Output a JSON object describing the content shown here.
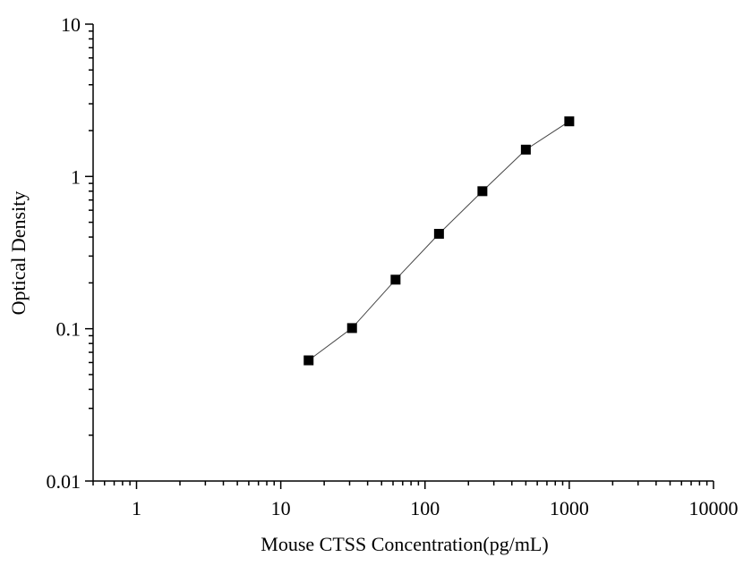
{
  "chart_data": {
    "type": "scatter",
    "title": "",
    "xlabel": "Mouse CTSS Concentration(pg/mL)",
    "ylabel": "Optical Density",
    "x_scale": "log",
    "y_scale": "log",
    "xlim": [
      0.5,
      10000
    ],
    "ylim": [
      0.01,
      10
    ],
    "x_ticks": [
      1,
      10,
      100,
      1000,
      10000
    ],
    "x_tick_labels": [
      "1",
      "10",
      "100",
      "1000",
      "10000"
    ],
    "y_ticks": [
      0.01,
      0.1,
      1,
      10
    ],
    "y_tick_labels": [
      "0.01",
      "0.1",
      "1",
      "10"
    ],
    "grid": false,
    "legend": "none",
    "series": [
      {
        "marker": "square",
        "line": "connected",
        "color": "#000000",
        "x": [
          15.6,
          31.2,
          62.5,
          125,
          250,
          500,
          1000
        ],
        "y": [
          0.062,
          0.101,
          0.21,
          0.42,
          0.8,
          1.5,
          2.3
        ]
      }
    ]
  }
}
